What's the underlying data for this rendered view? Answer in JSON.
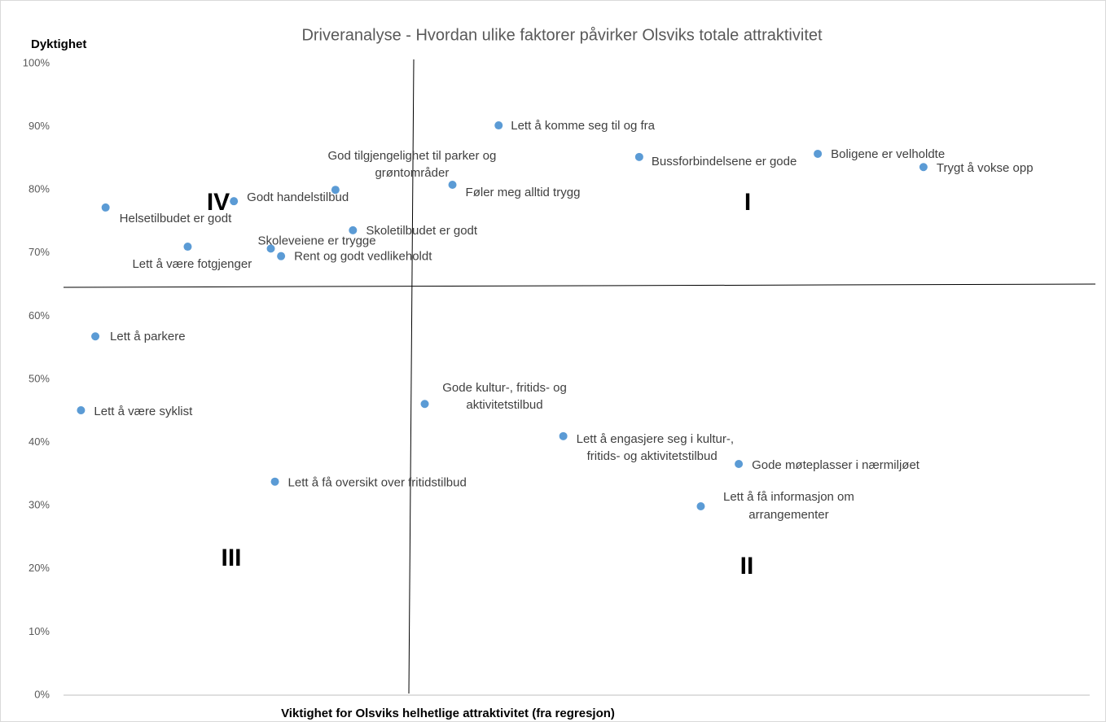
{
  "chart_data": {
    "type": "scatter",
    "title": "Driveranalyse - Hvordan ulike faktorer påvirker Olsviks totale attraktivitet",
    "y_label": "Dyktighet",
    "x_label": "Viktighet for Olsviks helhetlige attraktivitet (fra regresjon)",
    "color": "#5b9bd5",
    "xlim": [
      0,
      100
    ],
    "ylim": [
      0,
      100
    ],
    "yticks": [
      {
        "value": 0,
        "label": "0%"
      },
      {
        "value": 10,
        "label": "10%"
      },
      {
        "value": 20,
        "label": "20%"
      },
      {
        "value": 30,
        "label": "30%"
      },
      {
        "value": 40,
        "label": "40%"
      },
      {
        "value": 50,
        "label": "50%"
      },
      {
        "value": 60,
        "label": "60%"
      },
      {
        "value": 70,
        "label": "70%"
      },
      {
        "value": 80,
        "label": "80%"
      },
      {
        "value": 90,
        "label": "90%"
      },
      {
        "value": 100,
        "label": "100%"
      }
    ],
    "labels": [
      [
        "Lett å komme seg til og fra"
      ],
      [
        "Bussforbindelsene er gode"
      ],
      [
        "Boligene er velholdte"
      ],
      [
        "Trygt å vokse opp"
      ],
      [
        "God tilgjengelighet til parker og",
        "grøntområder"
      ],
      [
        "Føler meg alltid trygg"
      ],
      [
        "Godt handelstilbud"
      ],
      [
        "Helsetilbudet er godt"
      ],
      [
        "Skoletilbudet er godt"
      ],
      [
        "Lett å være fotgjenger"
      ],
      [
        "Skoleveiene er trygge"
      ],
      [
        "Rent og godt vedlikeholdt"
      ],
      [
        "Lett å parkere"
      ],
      [
        "Lett å være syklist"
      ],
      [
        "Gode kultur-, fritids- og",
        "aktivitetstilbud"
      ],
      [
        "Lett å engasjere seg i kultur-,",
        "fritids- og aktivitetstilbud"
      ],
      [
        "Gode møteplasser i nærmiljøet"
      ],
      [
        "Lett å få oversikt over fritidstilbud"
      ],
      [
        "Lett å få informasjon om",
        "arrangementer"
      ]
    ],
    "x": [
      42.4,
      56.1,
      73.5,
      83.8,
      26.5,
      37.9,
      16.6,
      4.1,
      28.2,
      12.1,
      20.2,
      21.2,
      3.1,
      1.7,
      35.2,
      48.7,
      65.8,
      20.6,
      62.1
    ],
    "values": [
      90.2,
      85.2,
      85.7,
      83.6,
      80.0,
      80.8,
      78.2,
      77.2,
      73.6,
      71.0,
      70.7,
      69.5,
      56.8,
      45.1,
      46.1,
      41.0,
      36.6,
      33.8,
      29.9
    ],
    "quadrant_labels": [
      "I",
      "II",
      "III",
      "IV"
    ]
  }
}
